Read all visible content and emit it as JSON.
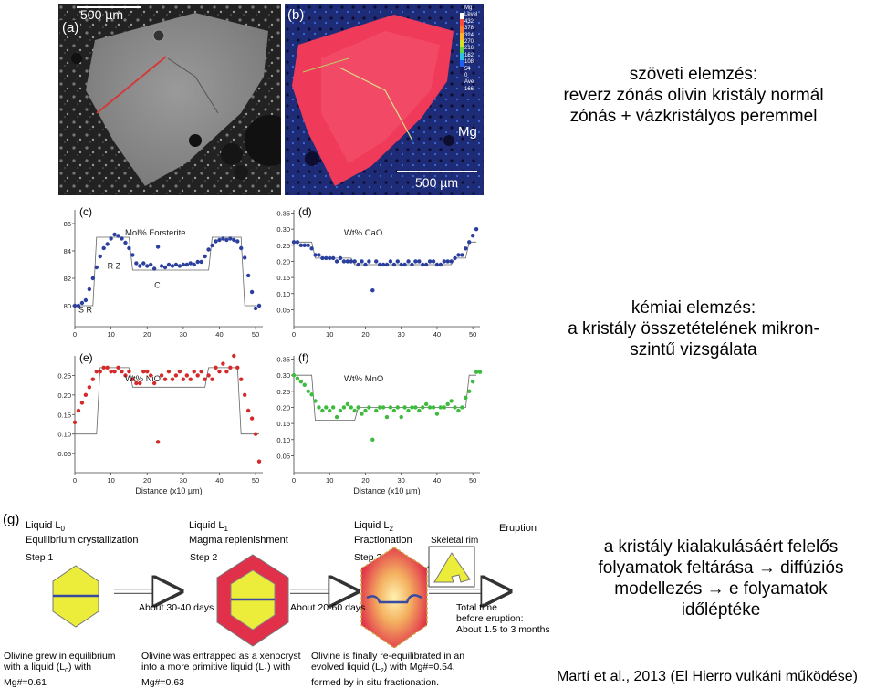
{
  "photos": {
    "a": {
      "letter": "(a)",
      "scale": "500 µm"
    },
    "b": {
      "letter": "(b)",
      "scale": "500 µm",
      "element": "Mg",
      "legend_header": [
        "Mg",
        "Level"
      ],
      "legend_values": [
        "432",
        "378",
        "324",
        "270",
        "216",
        "162",
        "108",
        "54",
        "0",
        "Ave",
        "166"
      ],
      "legend_colors": [
        "#ffffff",
        "#ff4a3a",
        "#ff7a2a",
        "#ffb52a",
        "#d8e020",
        "#62d840",
        "#30c0e0",
        "#2060f0",
        "#1a1a60"
      ]
    }
  },
  "plots": [
    {
      "id": "c",
      "letter": "(c)",
      "label": "Mol% Forsterite",
      "ylabels": [
        "86",
        "84",
        "82",
        "80"
      ],
      "yvals": [
        86,
        84,
        82,
        80
      ],
      "ymin": 79,
      "ymax": 87,
      "xlabels": [
        "0",
        "10",
        "20",
        "30",
        "40",
        "50"
      ],
      "color": "#2a3f9e",
      "annotations": [
        {
          "text": "R Z",
          "x": 9,
          "y": 82.7
        },
        {
          "text": "C",
          "x": 22,
          "y": 81.3
        },
        {
          "text": "S R",
          "x": 1,
          "y": 79.5
        }
      ],
      "step": [
        [
          0,
          80
        ],
        [
          5,
          80
        ],
        [
          6,
          85
        ],
        [
          15,
          85
        ],
        [
          16,
          82.6
        ],
        [
          37,
          82.6
        ],
        [
          38,
          85
        ],
        [
          46,
          85
        ],
        [
          47,
          80
        ],
        [
          51,
          80
        ]
      ],
      "points": [
        [
          0,
          80
        ],
        [
          1,
          80
        ],
        [
          2,
          80.2
        ],
        [
          3,
          80.4
        ],
        [
          4,
          81.2
        ],
        [
          5,
          82
        ],
        [
          6,
          82.8
        ],
        [
          7,
          83.6
        ],
        [
          8,
          84.2
        ],
        [
          9,
          84.5
        ],
        [
          10,
          84.9
        ],
        [
          11,
          85.2
        ],
        [
          12,
          85.1
        ],
        [
          13,
          84.9
        ],
        [
          14,
          84.6
        ],
        [
          15,
          84.2
        ],
        [
          16,
          83.7
        ],
        [
          17,
          83.1
        ],
        [
          18,
          82.9
        ],
        [
          19,
          83.1
        ],
        [
          20,
          82.9
        ],
        [
          21,
          83
        ],
        [
          22,
          82.7
        ],
        [
          23,
          84.3
        ],
        [
          24,
          82.9
        ],
        [
          25,
          82.8
        ],
        [
          26,
          83
        ],
        [
          27,
          82.9
        ],
        [
          28,
          83
        ],
        [
          29,
          82.9
        ],
        [
          30,
          83
        ],
        [
          31,
          83
        ],
        [
          32,
          83.1
        ],
        [
          33,
          83
        ],
        [
          34,
          83.2
        ],
        [
          35,
          83.2
        ],
        [
          36,
          83.6
        ],
        [
          37,
          84.1
        ],
        [
          38,
          84.4
        ],
        [
          39,
          84.7
        ],
        [
          40,
          84.8
        ],
        [
          41,
          84.9
        ],
        [
          42,
          84.8
        ],
        [
          43,
          84.9
        ],
        [
          44,
          84.8
        ],
        [
          45,
          84.7
        ],
        [
          46,
          84.2
        ],
        [
          47,
          83.5
        ],
        [
          48,
          82.2
        ],
        [
          49,
          81
        ],
        [
          50,
          79.8
        ],
        [
          51,
          80
        ]
      ]
    },
    {
      "id": "d",
      "letter": "(d)",
      "label": "Wt% CaO",
      "ylabels": [
        "0.35",
        "0.30",
        "0.25",
        "0.20",
        "0.15",
        "0.10",
        "0.05"
      ],
      "yvals": [
        0.35,
        0.3,
        0.25,
        0.2,
        0.15,
        0.1,
        0.05
      ],
      "ymin": 0.02,
      "ymax": 0.36,
      "xlabels": [
        "0",
        "10",
        "20",
        "30",
        "40",
        "50"
      ],
      "color": "#2a3f9e",
      "annotations": [],
      "step": [
        [
          0,
          0.26
        ],
        [
          5,
          0.26
        ],
        [
          6,
          0.21
        ],
        [
          16,
          0.21
        ],
        [
          17,
          0.19
        ],
        [
          44,
          0.19
        ],
        [
          45,
          0.21
        ],
        [
          48,
          0.21
        ],
        [
          49,
          0.26
        ],
        [
          51,
          0.26
        ]
      ],
      "points": [
        [
          0,
          0.26
        ],
        [
          1,
          0.26
        ],
        [
          2,
          0.25
        ],
        [
          3,
          0.25
        ],
        [
          4,
          0.25
        ],
        [
          5,
          0.24
        ],
        [
          6,
          0.22
        ],
        [
          7,
          0.22
        ],
        [
          8,
          0.21
        ],
        [
          9,
          0.21
        ],
        [
          10,
          0.21
        ],
        [
          11,
          0.21
        ],
        [
          12,
          0.2
        ],
        [
          13,
          0.21
        ],
        [
          14,
          0.2
        ],
        [
          15,
          0.2
        ],
        [
          16,
          0.2
        ],
        [
          17,
          0.2
        ],
        [
          18,
          0.19
        ],
        [
          19,
          0.2
        ],
        [
          20,
          0.19
        ],
        [
          21,
          0.2
        ],
        [
          22,
          0.11
        ],
        [
          23,
          0.2
        ],
        [
          24,
          0.19
        ],
        [
          25,
          0.19
        ],
        [
          26,
          0.19
        ],
        [
          27,
          0.2
        ],
        [
          28,
          0.19
        ],
        [
          29,
          0.2
        ],
        [
          30,
          0.19
        ],
        [
          31,
          0.19
        ],
        [
          32,
          0.2
        ],
        [
          33,
          0.19
        ],
        [
          34,
          0.2
        ],
        [
          35,
          0.2
        ],
        [
          36,
          0.19
        ],
        [
          37,
          0.19
        ],
        [
          38,
          0.2
        ],
        [
          39,
          0.2
        ],
        [
          40,
          0.19
        ],
        [
          41,
          0.19
        ],
        [
          42,
          0.2
        ],
        [
          43,
          0.2
        ],
        [
          44,
          0.2
        ],
        [
          45,
          0.21
        ],
        [
          46,
          0.22
        ],
        [
          47,
          0.22
        ],
        [
          48,
          0.24
        ],
        [
          49,
          0.26
        ],
        [
          50,
          0.28
        ],
        [
          51,
          0.3
        ]
      ]
    },
    {
      "id": "e",
      "letter": "(e)",
      "label": "Wt% NiO",
      "ylabels": [
        "0.25",
        "0.20",
        "0.15",
        "0.10",
        "0.05"
      ],
      "yvals": [
        0.25,
        0.2,
        0.15,
        0.1,
        0.05
      ],
      "ymin": 0.02,
      "ymax": 0.3,
      "xlabels": [
        "0",
        "10",
        "20",
        "30",
        "40",
        "50"
      ],
      "color": "#d42a2a",
      "annotations": [],
      "step": [
        [
          0,
          0.1
        ],
        [
          6,
          0.1
        ],
        [
          7,
          0.27
        ],
        [
          15,
          0.27
        ],
        [
          16,
          0.22
        ],
        [
          36,
          0.22
        ],
        [
          37,
          0.27
        ],
        [
          45,
          0.27
        ],
        [
          46,
          0.1
        ],
        [
          51,
          0.1
        ]
      ],
      "points": [
        [
          0,
          0.13
        ],
        [
          1,
          0.16
        ],
        [
          2,
          0.18
        ],
        [
          3,
          0.2
        ],
        [
          4,
          0.22
        ],
        [
          5,
          0.24
        ],
        [
          6,
          0.26
        ],
        [
          7,
          0.26
        ],
        [
          8,
          0.27
        ],
        [
          9,
          0.27
        ],
        [
          10,
          0.26
        ],
        [
          11,
          0.26
        ],
        [
          12,
          0.27
        ],
        [
          13,
          0.26
        ],
        [
          14,
          0.25
        ],
        [
          15,
          0.26
        ],
        [
          16,
          0.24
        ],
        [
          17,
          0.23
        ],
        [
          18,
          0.23
        ],
        [
          19,
          0.26
        ],
        [
          20,
          0.26
        ],
        [
          21,
          0.25
        ],
        [
          22,
          0.23
        ],
        [
          23,
          0.08
        ],
        [
          24,
          0.25
        ],
        [
          25,
          0.24
        ],
        [
          26,
          0.26
        ],
        [
          27,
          0.24
        ],
        [
          28,
          0.25
        ],
        [
          29,
          0.26
        ],
        [
          30,
          0.24
        ],
        [
          31,
          0.25
        ],
        [
          32,
          0.24
        ],
        [
          33,
          0.26
        ],
        [
          34,
          0.25
        ],
        [
          35,
          0.26
        ],
        [
          36,
          0.24
        ],
        [
          37,
          0.25
        ],
        [
          38,
          0.24
        ],
        [
          39,
          0.27
        ],
        [
          40,
          0.26
        ],
        [
          41,
          0.28
        ],
        [
          42,
          0.26
        ],
        [
          43,
          0.27
        ],
        [
          44,
          0.3
        ],
        [
          45,
          0.27
        ],
        [
          46,
          0.24
        ],
        [
          47,
          0.2
        ],
        [
          48,
          0.16
        ],
        [
          49,
          0.14
        ],
        [
          50,
          0.1
        ],
        [
          51,
          0.03
        ]
      ]
    },
    {
      "id": "f",
      "letter": "(f)",
      "label": "Wt% MnO",
      "ylabels": [
        "0.35",
        "0.30",
        "0.25",
        "0.20",
        "0.15",
        "0.10",
        "0.05"
      ],
      "yvals": [
        0.35,
        0.3,
        0.25,
        0.2,
        0.15,
        0.1,
        0.05
      ],
      "ymin": 0.02,
      "ymax": 0.36,
      "xlabels": [
        "0",
        "10",
        "20",
        "30",
        "40",
        "50"
      ],
      "color": "#3dbb3d",
      "annotations": [],
      "step": [
        [
          0,
          0.3
        ],
        [
          5,
          0.3
        ],
        [
          6,
          0.16
        ],
        [
          17,
          0.16
        ],
        [
          18,
          0.2
        ],
        [
          48,
          0.2
        ],
        [
          49,
          0.3
        ],
        [
          51,
          0.3
        ]
      ],
      "points": [
        [
          0,
          0.3
        ],
        [
          1,
          0.29
        ],
        [
          2,
          0.28
        ],
        [
          3,
          0.27
        ],
        [
          4,
          0.25
        ],
        [
          5,
          0.24
        ],
        [
          6,
          0.22
        ],
        [
          7,
          0.2
        ],
        [
          8,
          0.19
        ],
        [
          9,
          0.2
        ],
        [
          10,
          0.19
        ],
        [
          11,
          0.2
        ],
        [
          12,
          0.17
        ],
        [
          13,
          0.19
        ],
        [
          14,
          0.2
        ],
        [
          15,
          0.21
        ],
        [
          16,
          0.2
        ],
        [
          17,
          0.19
        ],
        [
          18,
          0.2
        ],
        [
          19,
          0.18
        ],
        [
          20,
          0.19
        ],
        [
          21,
          0.2
        ],
        [
          22,
          0.1
        ],
        [
          23,
          0.19
        ],
        [
          24,
          0.2
        ],
        [
          25,
          0.2
        ],
        [
          26,
          0.17
        ],
        [
          27,
          0.2
        ],
        [
          28,
          0.19
        ],
        [
          29,
          0.2
        ],
        [
          30,
          0.17
        ],
        [
          31,
          0.2
        ],
        [
          32,
          0.19
        ],
        [
          33,
          0.2
        ],
        [
          34,
          0.2
        ],
        [
          35,
          0.19
        ],
        [
          36,
          0.2
        ],
        [
          37,
          0.21
        ],
        [
          38,
          0.2
        ],
        [
          39,
          0.2
        ],
        [
          40,
          0.18
        ],
        [
          41,
          0.2
        ],
        [
          42,
          0.2
        ],
        [
          43,
          0.21
        ],
        [
          44,
          0.22
        ],
        [
          45,
          0.2
        ],
        [
          46,
          0.19
        ],
        [
          47,
          0.2
        ],
        [
          48,
          0.23
        ],
        [
          49,
          0.25
        ],
        [
          50,
          0.28
        ],
        [
          51,
          0.31
        ],
        [
          52,
          0.31
        ]
      ]
    }
  ],
  "xlabel": "Distance (x10 µm)",
  "texts": {
    "t1": [
      "szöveti elemzés:",
      "reverz zónás olivin kristály normál",
      "zónás + vázkristályos peremmel"
    ],
    "t2": [
      "kémiai elemzés:",
      "a kristály összetételének mikron-",
      "szintű vizsgálata"
    ],
    "t3": [
      "a kristály kialakulásáért felelős",
      "folyamatok feltárása → diffúziós",
      "modellezés → e folyamatok",
      "időléptéke"
    ],
    "citation": "Martí et al., 2013 (El Hierro vulkáni működése)"
  },
  "schematic": {
    "letter": "(g)",
    "liquid0": "Liquid L",
    "liquid0_sub": "0",
    "liquid0_desc": "Equilibrium crystallization",
    "liquid1": "Liquid L",
    "liquid1_sub": "1",
    "liquid1_desc": "Magma replenishment",
    "liquid2": "Liquid L",
    "liquid2_sub": "2",
    "liquid2_desc": "Fractionation",
    "skeletal": "Skeletal rim",
    "eruption": "Eruption",
    "step1": "Step 1",
    "step2": "Step 2",
    "step3": "Step 3",
    "arrow1": "About 30-40 days",
    "arrow2": "About 20-60 days",
    "total": [
      "Total time",
      "before eruption:",
      "About 1.5 to 3 months"
    ],
    "note1": [
      "Olivine grew in equilibrium",
      "with a liquid (L",
      "0",
      ") with",
      "Mg#=0.61"
    ],
    "note2": [
      "Olivine was entrapped as a xenocryst",
      "into a more primitive liquid (L",
      "1",
      ") with",
      "Mg#=0.63"
    ],
    "note3": [
      "Olivine is finally re-equilibrated in an",
      "evolved liquid (L",
      "2",
      ") with Mg#=0.54,",
      "formed by in situ fractionation."
    ]
  }
}
